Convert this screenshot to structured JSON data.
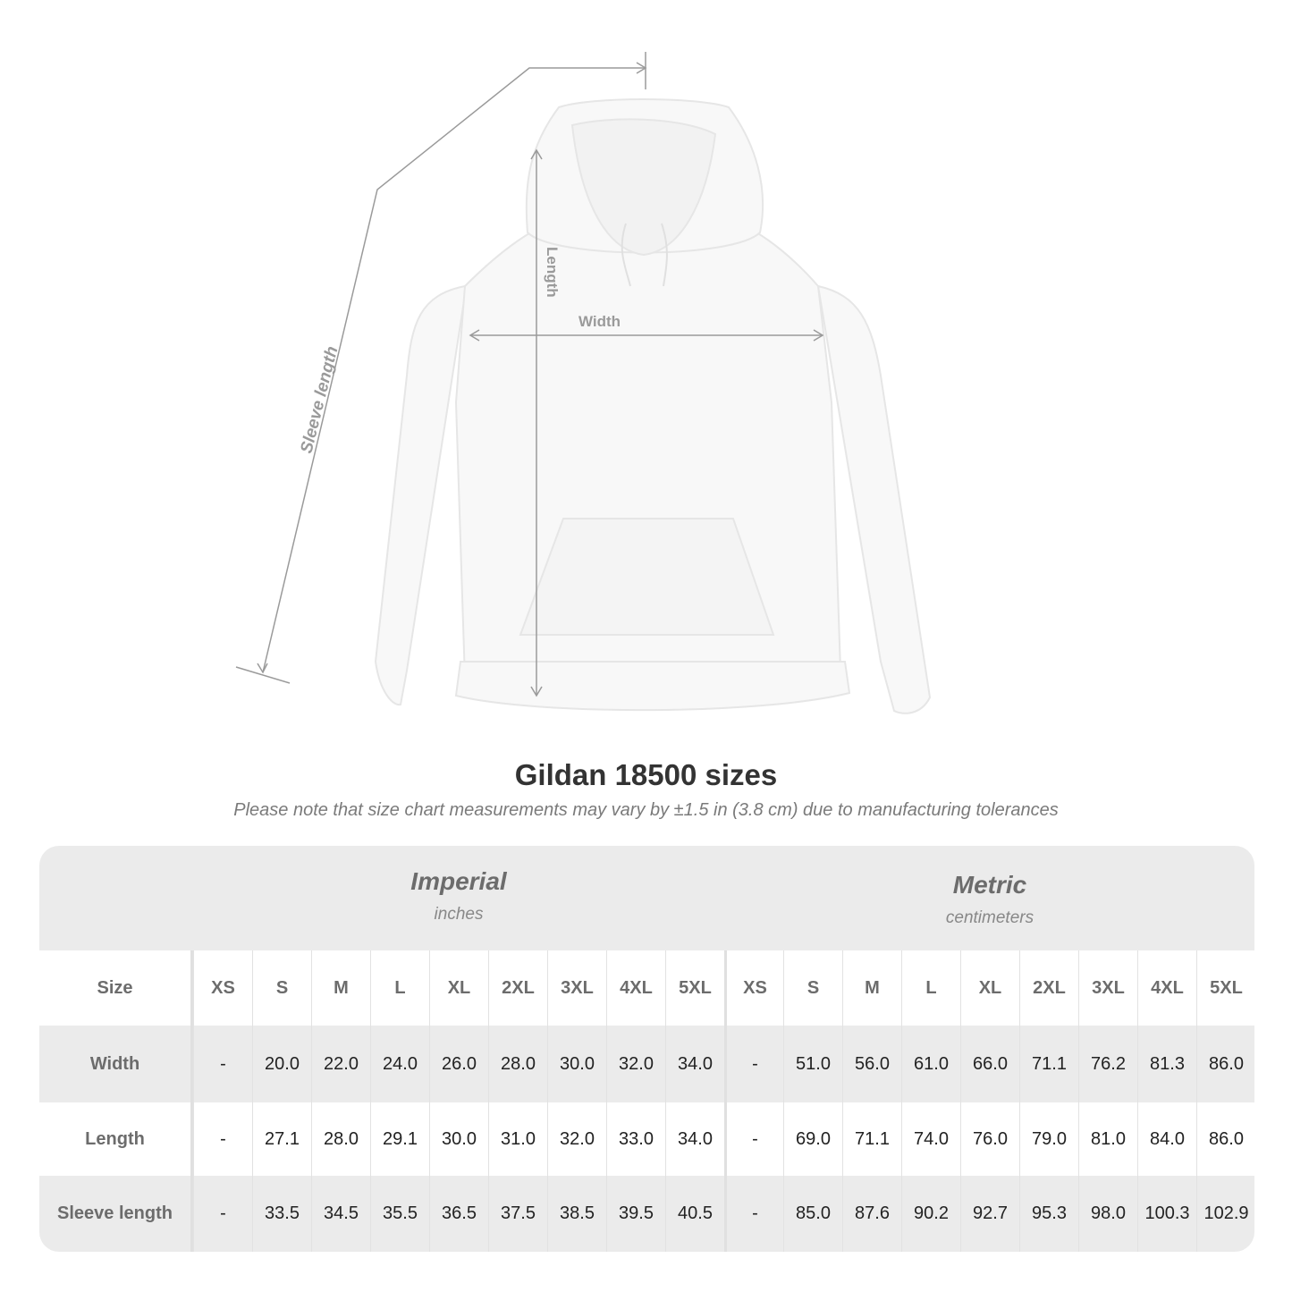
{
  "diagram": {
    "labels": {
      "sleeve": "Sleeve length",
      "length": "Length",
      "width": "Width"
    }
  },
  "title": "Gildan 18500 sizes",
  "note": "Please note that size chart measurements may vary by ±1.5 in (3.8 cm) due to manufacturing tolerances",
  "table": {
    "imperial": {
      "name": "Imperial",
      "unit": "inches"
    },
    "metric": {
      "name": "Metric",
      "unit": "centimeters"
    },
    "size_label": "Size",
    "sizes": [
      "XS",
      "S",
      "M",
      "L",
      "XL",
      "2XL",
      "3XL",
      "4XL",
      "5XL"
    ],
    "rows": [
      {
        "label": "Width",
        "imperial": [
          "-",
          "20.0",
          "22.0",
          "24.0",
          "26.0",
          "28.0",
          "30.0",
          "32.0",
          "34.0"
        ],
        "metric": [
          "-",
          "51.0",
          "56.0",
          "61.0",
          "66.0",
          "71.1",
          "76.2",
          "81.3",
          "86.0"
        ]
      },
      {
        "label": "Length",
        "imperial": [
          "-",
          "27.1",
          "28.0",
          "29.1",
          "30.0",
          "31.0",
          "32.0",
          "33.0",
          "34.0"
        ],
        "metric": [
          "-",
          "69.0",
          "71.1",
          "74.0",
          "76.0",
          "79.0",
          "81.0",
          "84.0",
          "86.0"
        ]
      },
      {
        "label": "Sleeve length",
        "imperial": [
          "-",
          "33.5",
          "34.5",
          "35.5",
          "36.5",
          "37.5",
          "38.5",
          "39.5",
          "40.5"
        ],
        "metric": [
          "-",
          "85.0",
          "87.6",
          "90.2",
          "92.7",
          "95.3",
          "98.0",
          "100.3",
          "102.9"
        ]
      }
    ]
  },
  "colors": {
    "band": "#ebebeb",
    "label_text": "#6c6c6c",
    "measure_line": "#9a9a9a"
  }
}
